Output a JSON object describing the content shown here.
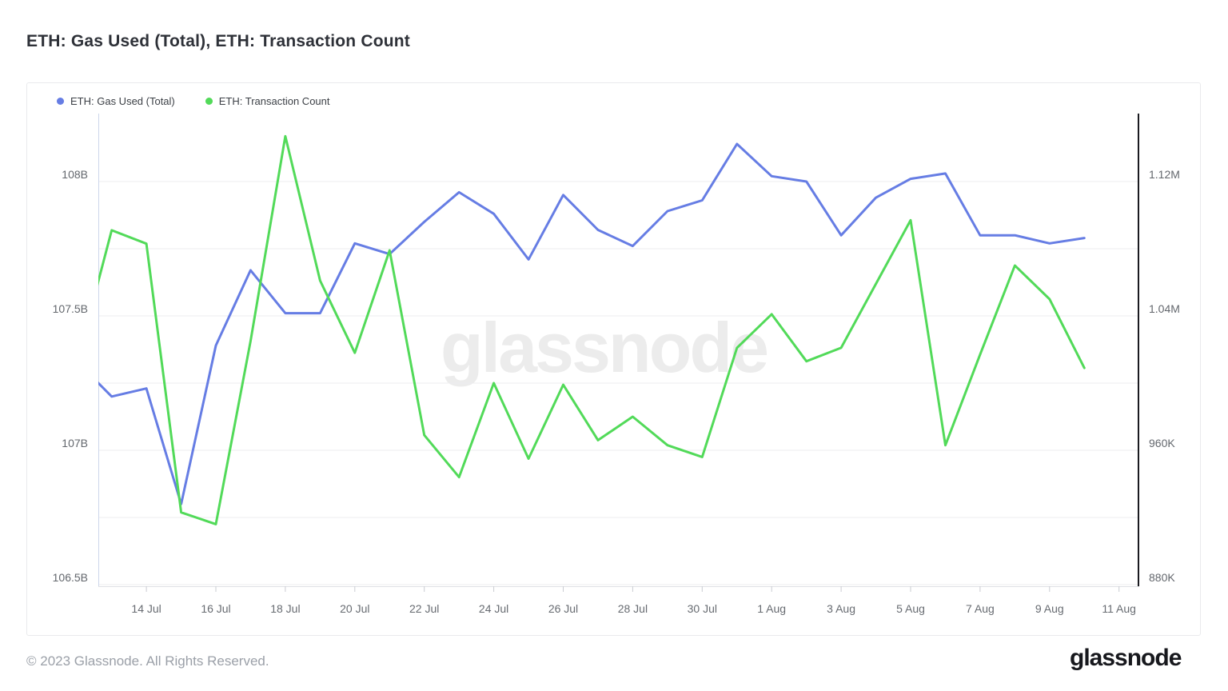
{
  "page": {
    "title": "ETH: Gas Used (Total), ETH: Transaction Count"
  },
  "legend": {
    "items": [
      {
        "label": "ETH: Gas Used (Total)",
        "color": "#667de4"
      },
      {
        "label": "ETH: Transaction Count",
        "color": "#52da59"
      }
    ]
  },
  "watermark_text": "glassnode",
  "footer": {
    "copyright": "© 2023 Glassnode. All Rights Reserved.",
    "brand": "glassnode"
  },
  "chart_data": {
    "type": "line",
    "title": "ETH: Gas Used (Total), ETH: Transaction Count",
    "grid": "horizontal",
    "legend_position": "top-left",
    "x": [
      "12 Jul",
      "13 Jul",
      "14 Jul",
      "15 Jul",
      "16 Jul",
      "17 Jul",
      "18 Jul",
      "19 Jul",
      "20 Jul",
      "21 Jul",
      "22 Jul",
      "23 Jul",
      "24 Jul",
      "25 Jul",
      "26 Jul",
      "27 Jul",
      "28 Jul",
      "29 Jul",
      "30 Jul",
      "31 Jul",
      "1 Aug",
      "2 Aug",
      "3 Aug",
      "4 Aug",
      "5 Aug",
      "6 Aug",
      "7 Aug",
      "8 Aug",
      "9 Aug",
      "10 Aug"
    ],
    "series": [
      {
        "name": "ETH: Gas Used (Total)",
        "yaxis": "left",
        "color": "#667de4",
        "units": "billion gas (B)",
        "values": [
          107.33,
          107.2,
          107.23,
          106.8,
          107.39,
          107.67,
          107.51,
          107.51,
          107.77,
          107.73,
          107.85,
          107.96,
          107.88,
          107.71,
          107.95,
          107.82,
          107.76,
          107.89,
          107.93,
          108.14,
          108.02,
          108.0,
          107.8,
          107.94,
          108.01,
          108.03,
          107.8,
          107.8,
          107.77,
          107.79
        ]
      },
      {
        "name": "ETH: Transaction Count",
        "yaxis": "right",
        "color": "#52da59",
        "units": "thousand transactions (K)",
        "values": [
          1012,
          1091,
          1083,
          923,
          916,
          1025,
          1147,
          1061,
          1018,
          1079,
          969,
          944,
          1000,
          955,
          999,
          966,
          980,
          963,
          956,
          1021,
          1041,
          1013,
          1021,
          1059,
          1097,
          963,
          1017,
          1070,
          1050,
          1009
        ]
      }
    ],
    "y_left": {
      "ticks": [
        {
          "label": "108B",
          "value": 108
        },
        {
          "label": "107.5B",
          "value": 107.5
        },
        {
          "label": "107B",
          "value": 107
        },
        {
          "label": "106.5B",
          "value": 106.5
        }
      ],
      "gridlines": [
        108,
        107.75,
        107.5,
        107.25,
        107,
        106.75,
        106.5
      ],
      "range": [
        106.5,
        108.25
      ]
    },
    "y_right": {
      "ticks": [
        {
          "label": "1.12M",
          "value": 1120
        },
        {
          "label": "1.04M",
          "value": 1040
        },
        {
          "label": "960K",
          "value": 960
        },
        {
          "label": "880K",
          "value": 880
        }
      ],
      "range": [
        880,
        1160
      ]
    },
    "x_ticks": {
      "labels": [
        "14 Jul",
        "16 Jul",
        "18 Jul",
        "20 Jul",
        "22 Jul",
        "24 Jul",
        "26 Jul",
        "28 Jul",
        "30 Jul",
        "1 Aug",
        "3 Aug",
        "5 Aug",
        "7 Aug",
        "9 Aug",
        "11 Aug"
      ],
      "first_index": 2,
      "step": 2
    }
  }
}
